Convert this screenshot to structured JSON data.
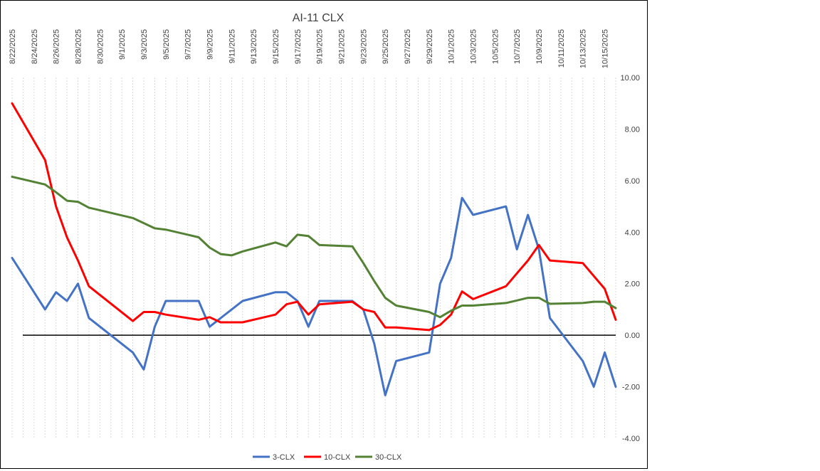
{
  "chart_data": {
    "type": "line",
    "title": "AI-11 CLX",
    "xlabel": "",
    "ylabel": "",
    "x_tick_labels": [
      "8/22/2025",
      "8/24/2025",
      "8/26/2025",
      "8/28/2025",
      "8/30/2025",
      "9/1/2025",
      "9/3/2025",
      "9/5/2025",
      "9/7/2025",
      "9/9/2025",
      "9/11/2025",
      "9/13/2025",
      "9/15/2025",
      "9/17/2025",
      "9/19/2025",
      "9/21/2025",
      "9/23/2025",
      "9/25/2025",
      "9/27/2025",
      "9/29/2025",
      "10/1/2025",
      "10/3/2025",
      "10/5/2025",
      "10/7/2025",
      "10/9/2025",
      "10/11/2025",
      "10/13/2025",
      "10/15/2025"
    ],
    "xlim": [
      "8/22/2025",
      "10/16/2025"
    ],
    "ylim": [
      -4,
      10
    ],
    "y_ticks": [
      "-4.00",
      "-2.00",
      "0.00",
      "2.00",
      "4.00",
      "6.00",
      "8.00",
      "10.00"
    ],
    "y_axis_side": "right",
    "x_axis_position": "top",
    "grid": {
      "vertical": true,
      "horizontal": false
    },
    "zero_line": true,
    "legend_position": "bottom",
    "series": [
      {
        "name": "3-CLX",
        "color": "#4472C4",
        "points": [
          [
            "8/22/2025",
            3.0
          ],
          [
            "8/25/2025",
            1.0
          ],
          [
            "8/26/2025",
            1.67
          ],
          [
            "8/27/2025",
            1.33
          ],
          [
            "8/28/2025",
            2.0
          ],
          [
            "8/29/2025",
            0.67
          ],
          [
            "9/2/2025",
            -0.67
          ],
          [
            "9/3/2025",
            -1.33
          ],
          [
            "9/4/2025",
            0.33
          ],
          [
            "9/5/2025",
            1.33
          ],
          [
            "9/8/2025",
            1.33
          ],
          [
            "9/9/2025",
            0.33
          ],
          [
            "9/12/2025",
            1.33
          ],
          [
            "9/15/2025",
            1.67
          ],
          [
            "9/16/2025",
            1.67
          ],
          [
            "9/17/2025",
            1.33
          ],
          [
            "9/18/2025",
            0.33
          ],
          [
            "9/19/2025",
            1.33
          ],
          [
            "9/22/2025",
            1.33
          ],
          [
            "9/23/2025",
            1.0
          ],
          [
            "9/24/2025",
            -0.33
          ],
          [
            "9/25/2025",
            -2.33
          ],
          [
            "9/26/2025",
            -1.0
          ],
          [
            "9/29/2025",
            -0.67
          ],
          [
            "9/30/2025",
            2.0
          ],
          [
            "10/1/2025",
            3.0
          ],
          [
            "10/2/2025",
            5.33
          ],
          [
            "10/3/2025",
            4.67
          ],
          [
            "10/6/2025",
            5.0
          ],
          [
            "10/7/2025",
            3.33
          ],
          [
            "10/8/2025",
            4.67
          ],
          [
            "10/9/2025",
            3.33
          ],
          [
            "10/10/2025",
            0.67
          ],
          [
            "10/13/2025",
            -1.0
          ],
          [
            "10/14/2025",
            -2.0
          ],
          [
            "10/15/2025",
            -0.67
          ],
          [
            "10/16/2025",
            -2.0
          ]
        ]
      },
      {
        "name": "10-CLX",
        "color": "#FF0000",
        "points": [
          [
            "8/22/2025",
            9.0
          ],
          [
            "8/25/2025",
            6.8
          ],
          [
            "8/26/2025",
            5.0
          ],
          [
            "8/27/2025",
            3.8
          ],
          [
            "8/28/2025",
            2.9
          ],
          [
            "8/29/2025",
            1.9
          ],
          [
            "9/2/2025",
            0.55
          ],
          [
            "9/3/2025",
            0.9
          ],
          [
            "9/4/2025",
            0.9
          ],
          [
            "9/5/2025",
            0.8
          ],
          [
            "9/8/2025",
            0.6
          ],
          [
            "9/9/2025",
            0.7
          ],
          [
            "9/10/2025",
            0.5
          ],
          [
            "9/12/2025",
            0.5
          ],
          [
            "9/15/2025",
            0.8
          ],
          [
            "9/16/2025",
            1.2
          ],
          [
            "9/17/2025",
            1.3
          ],
          [
            "9/18/2025",
            0.8
          ],
          [
            "9/19/2025",
            1.2
          ],
          [
            "9/22/2025",
            1.3
          ],
          [
            "9/23/2025",
            1.0
          ],
          [
            "9/24/2025",
            0.9
          ],
          [
            "9/25/2025",
            0.3
          ],
          [
            "9/26/2025",
            0.3
          ],
          [
            "9/29/2025",
            0.2
          ],
          [
            "9/30/2025",
            0.4
          ],
          [
            "10/1/2025",
            0.8
          ],
          [
            "10/2/2025",
            1.7
          ],
          [
            "10/3/2025",
            1.4
          ],
          [
            "10/6/2025",
            1.9
          ],
          [
            "10/7/2025",
            2.4
          ],
          [
            "10/8/2025",
            2.9
          ],
          [
            "10/9/2025",
            3.5
          ],
          [
            "10/10/2025",
            2.9
          ],
          [
            "10/13/2025",
            2.8
          ],
          [
            "10/15/2025",
            1.8
          ],
          [
            "10/16/2025",
            0.6
          ]
        ]
      },
      {
        "name": "30-CLX",
        "color": "#548235",
        "points": [
          [
            "8/22/2025",
            6.15
          ],
          [
            "8/25/2025",
            5.85
          ],
          [
            "8/26/2025",
            5.55
          ],
          [
            "8/27/2025",
            5.22
          ],
          [
            "8/28/2025",
            5.18
          ],
          [
            "8/29/2025",
            4.95
          ],
          [
            "9/2/2025",
            4.55
          ],
          [
            "9/3/2025",
            4.35
          ],
          [
            "9/4/2025",
            4.15
          ],
          [
            "9/5/2025",
            4.1
          ],
          [
            "9/8/2025",
            3.8
          ],
          [
            "9/9/2025",
            3.4
          ],
          [
            "9/10/2025",
            3.15
          ],
          [
            "9/11/2025",
            3.1
          ],
          [
            "9/12/2025",
            3.25
          ],
          [
            "9/15/2025",
            3.6
          ],
          [
            "9/16/2025",
            3.45
          ],
          [
            "9/17/2025",
            3.9
          ],
          [
            "9/18/2025",
            3.85
          ],
          [
            "9/19/2025",
            3.5
          ],
          [
            "9/22/2025",
            3.45
          ],
          [
            "9/23/2025",
            2.8
          ],
          [
            "9/24/2025",
            2.1
          ],
          [
            "9/25/2025",
            1.45
          ],
          [
            "9/26/2025",
            1.15
          ],
          [
            "9/29/2025",
            0.9
          ],
          [
            "9/30/2025",
            0.7
          ],
          [
            "10/1/2025",
            0.95
          ],
          [
            "10/2/2025",
            1.15
          ],
          [
            "10/3/2025",
            1.15
          ],
          [
            "10/6/2025",
            1.25
          ],
          [
            "10/7/2025",
            1.35
          ],
          [
            "10/8/2025",
            1.45
          ],
          [
            "10/9/2025",
            1.45
          ],
          [
            "10/10/2025",
            1.22
          ],
          [
            "10/13/2025",
            1.25
          ],
          [
            "10/14/2025",
            1.3
          ],
          [
            "10/15/2025",
            1.3
          ],
          [
            "10/16/2025",
            1.05
          ]
        ]
      }
    ]
  }
}
